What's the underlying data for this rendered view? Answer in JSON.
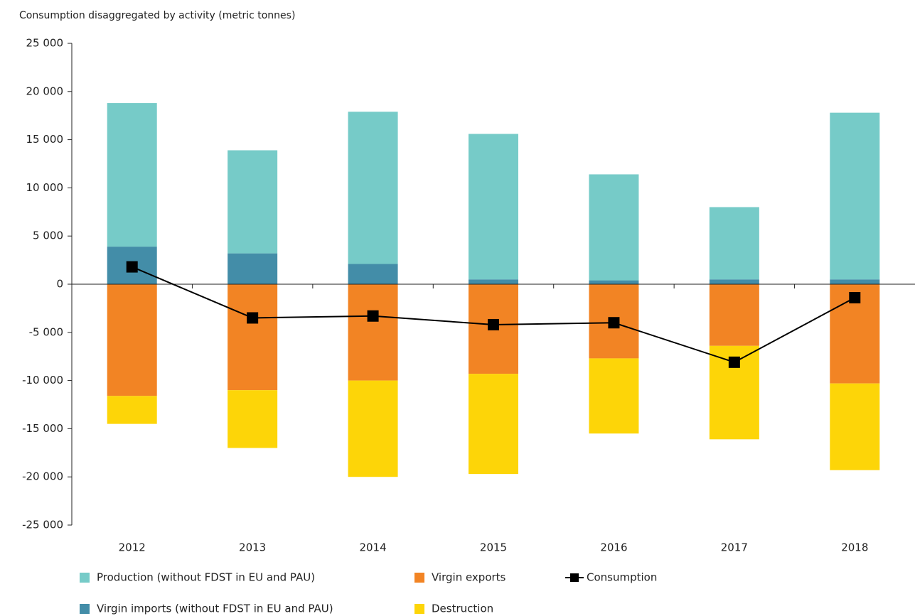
{
  "chart_data": {
    "type": "bar",
    "title": "Consumption disaggregated by activity (metric tonnes)",
    "categories": [
      "2012",
      "2013",
      "2014",
      "2015",
      "2016",
      "2017",
      "2018"
    ],
    "series": [
      {
        "name": "Virgin imports (without FDST in EU and PAU)",
        "color": "#438da8",
        "values": [
          3900,
          3200,
          2100,
          500,
          400,
          500,
          500
        ]
      },
      {
        "name": "Production (without FDST in EU and PAU)",
        "color": "#76cbc8",
        "values": [
          14900,
          10700,
          15800,
          15100,
          11000,
          7500,
          17300
        ]
      },
      {
        "name": "Virgin exports",
        "color": "#f28424",
        "values": [
          -11600,
          -11000,
          -10000,
          -9300,
          -7700,
          -6400,
          -10300
        ]
      },
      {
        "name": "Destruction",
        "color": "#fdd508",
        "values": [
          -2900,
          -6000,
          -10000,
          -10400,
          -7800,
          -9700,
          -9000
        ]
      },
      {
        "name": "Consumption",
        "color": "#000000",
        "type": "line",
        "values": [
          1800,
          -3500,
          -3300,
          -4200,
          -4000,
          -8100,
          -1400
        ]
      }
    ],
    "ylim": [
      -25000,
      25000
    ],
    "yticks": [
      {
        "value": -25000,
        "label": "-25 000"
      },
      {
        "value": -20000,
        "label": "-20 000"
      },
      {
        "value": -15000,
        "label": "-15 000"
      },
      {
        "value": -10000,
        "label": "-10 000"
      },
      {
        "value": -5000,
        "label": "-5 000"
      },
      0,
      {
        "value": 5000,
        "label": "5 000"
      },
      {
        "value": 10000,
        "label": "10 000"
      },
      {
        "value": 15000,
        "label": "15 000"
      },
      {
        "value": 20000,
        "label": "20 000"
      },
      {
        "value": 25000,
        "label": "25 000"
      }
    ],
    "grid": false
  }
}
